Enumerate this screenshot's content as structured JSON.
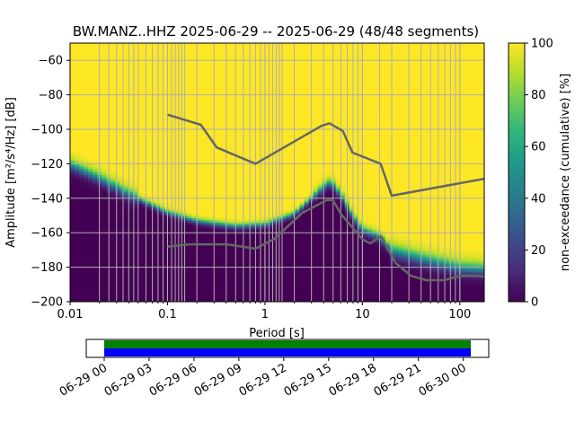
{
  "chart_data": {
    "type": "heatmap",
    "title": "BW.MANZ..HHZ   2025-06-29 -- 2025-06-29  (48/48 segments)",
    "xlabel": "Period [s]",
    "ylabel": "Amplitude [m²/s⁴/Hz] [dB]",
    "x_scale": "log",
    "xlim": [
      0.01,
      178
    ],
    "ylim": [
      -200,
      -50
    ],
    "xticks": [
      0.01,
      0.1,
      1,
      10,
      100
    ],
    "xtick_labels": [
      "0.01",
      "0.1",
      "1",
      "10",
      "100"
    ],
    "yticks": [
      -60,
      -80,
      -100,
      -120,
      -140,
      -160,
      -180,
      -200
    ],
    "ytick_labels": [
      "−60",
      "−80",
      "−100",
      "−120",
      "−140",
      "−160",
      "−180",
      "−200"
    ],
    "colorbar": {
      "label": "non-exceedance (cumulative) [%]",
      "range": [
        0,
        100
      ],
      "ticks": [
        0,
        20,
        40,
        60,
        80,
        100
      ],
      "tick_labels": [
        "0",
        "20",
        "40",
        "60",
        "80",
        "100"
      ]
    },
    "psd_median_approx": {
      "period": [
        0.01,
        0.02,
        0.05,
        0.1,
        0.2,
        0.5,
        1,
        2,
        3,
        4,
        4.5,
        5,
        6,
        8,
        10,
        15,
        20,
        50,
        100,
        178
      ],
      "db": [
        -120,
        -128,
        -140,
        -148,
        -153,
        -156,
        -155,
        -149,
        -140,
        -133,
        -131,
        -132,
        -138,
        -150,
        -158,
        -162,
        -170,
        -176,
        -180,
        -181
      ]
    },
    "nhnm": {
      "period": [
        0.1,
        0.22,
        0.32,
        0.8,
        3.8,
        4.6,
        6.3,
        7.9,
        15.4,
        20,
        178
      ],
      "db": [
        -91.5,
        -97.4,
        -110.5,
        -120,
        -98,
        -96.5,
        -101,
        -113.5,
        -120,
        -138.5,
        -128.7
      ]
    },
    "nlnm": {
      "period": [
        0.1,
        0.17,
        0.4,
        0.8,
        1.24,
        2.4,
        4.3,
        5,
        6,
        10,
        12,
        15.6,
        21.9,
        31.6,
        45,
        70,
        101,
        154,
        178
      ],
      "db": [
        -168,
        -166.7,
        -166.7,
        -169.2,
        -163.7,
        -148.6,
        -141.1,
        -141.1,
        -149,
        -163.8,
        -166.2,
        -162.1,
        -177.5,
        -185,
        -187.5,
        -187.5,
        -185,
        -185,
        -185.5
      ]
    },
    "periods_grid": [
      0.02,
      0.025,
      0.03,
      0.035,
      0.04,
      0.045,
      0.05,
      0.06,
      0.07,
      0.08,
      0.09,
      0.1,
      0.11,
      0.12,
      0.13,
      0.14,
      0.15,
      0.2,
      0.3,
      0.4,
      0.5,
      0.6,
      0.7,
      0.8,
      0.9,
      1,
      1.1,
      1.2,
      1.3,
      1.4,
      1.5,
      2,
      3,
      4,
      5,
      6,
      7,
      8,
      9,
      10,
      15,
      20,
      30,
      40,
      50,
      60,
      70,
      80,
      90,
      100
    ]
  },
  "timeline": {
    "tick_labels": [
      "06-29 00",
      "06-29 03",
      "06-29 06",
      "06-29 09",
      "06-29 12",
      "06-29 15",
      "06-29 18",
      "06-29 21",
      "06-30 00"
    ],
    "tick_hours": [
      0,
      3,
      6,
      9,
      12,
      15,
      18,
      21,
      24
    ],
    "range_hours": [
      -1.2,
      25.7
    ],
    "coverage_hours": [
      0,
      24.5
    ],
    "data_color": "#008000",
    "gap_color": "#0000ff"
  },
  "colors": {
    "line": "#666666",
    "grid": "#b0b0b0",
    "viridis": [
      "#440154",
      "#482878",
      "#3e4989",
      "#31688e",
      "#26828e",
      "#1f9e89",
      "#35b779",
      "#6ece58",
      "#b5de2b",
      "#fde725"
    ]
  }
}
